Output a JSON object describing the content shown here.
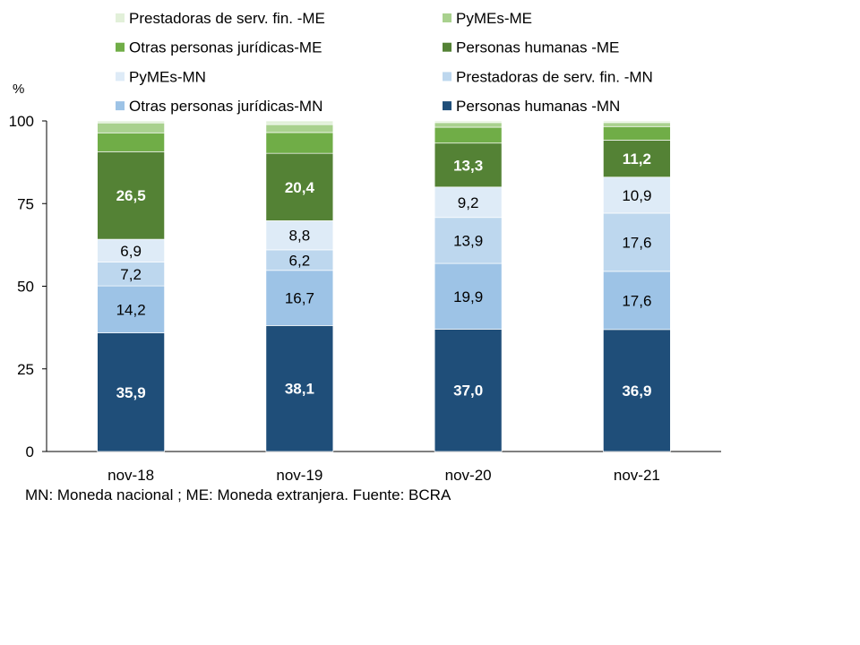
{
  "chart_data": {
    "type": "bar",
    "stacked": true,
    "ylabel": "%",
    "ylim": [
      0,
      100
    ],
    "yticks": [
      0,
      25,
      50,
      75,
      100
    ],
    "categories": [
      "nov-18",
      "nov-19",
      "nov-20",
      "nov-21"
    ],
    "series": [
      {
        "name": "Personas humanas -MN",
        "color": "#1f4e79",
        "values": [
          35.9,
          38.1,
          37.0,
          36.9
        ],
        "labels": [
          "35,9",
          "38,1",
          "37,0",
          "36,9"
        ],
        "label_color": "#ffffff",
        "bold": true
      },
      {
        "name": "Otras personas jurídicas-MN",
        "color": "#9dc3e6",
        "values": [
          14.2,
          16.7,
          19.9,
          17.6
        ],
        "labels": [
          "14,2",
          "16,7",
          "19,9",
          "17,6"
        ],
        "label_color": "#000000"
      },
      {
        "name": "Prestadoras de serv. fin. -MN",
        "color": "#bdd7ee",
        "values": [
          7.2,
          6.2,
          13.9,
          17.6
        ],
        "labels": [
          "7,2",
          "6,2",
          "13,9",
          "17,6"
        ],
        "label_color": "#000000"
      },
      {
        "name": "PyMEs-MN",
        "color": "#deebf7",
        "values": [
          6.9,
          8.8,
          9.2,
          10.9
        ],
        "labels": [
          "6,9",
          "8,8",
          "9,2",
          "10,9"
        ],
        "label_color": "#000000"
      },
      {
        "name": "Personas humanas -ME",
        "color": "#548235",
        "values": [
          26.5,
          20.4,
          13.3,
          11.2
        ],
        "labels": [
          "26,5",
          "20,4",
          "13,3",
          "11,2"
        ],
        "label_color": "#ffffff",
        "bold": true
      },
      {
        "name": "Otras personas jurídicas-ME",
        "color": "#70ad47",
        "values": [
          5.7,
          6.3,
          4.8,
          4.1
        ]
      },
      {
        "name": "PyMEs-ME",
        "color": "#a9d18e",
        "values": [
          3.0,
          2.4,
          1.4,
          1.2
        ]
      },
      {
        "name": "Prestadoras de serv. fin. -ME",
        "color": "#e2f0d9",
        "values": [
          0.6,
          1.1,
          0.5,
          0.5
        ]
      }
    ],
    "legend_order": [
      7,
      6,
      5,
      4,
      3,
      2,
      1,
      0
    ],
    "legend_placement": "top",
    "note": "MN: Moneda nacional ;  ME: Moneda extranjera. Fuente: BCRA"
  }
}
